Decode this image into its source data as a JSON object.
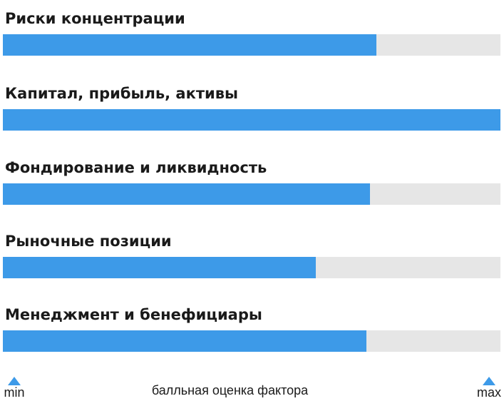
{
  "chart_data": {
    "type": "bar",
    "orientation": "horizontal",
    "categories": [
      "Риски концентрации",
      "Капитал, прибыль, активы",
      "Фондирование и ликвидность",
      "Рыночные позиции",
      "Менеджмент и бенефициары"
    ],
    "values": [
      0.75,
      1.0,
      0.738,
      0.629,
      0.731
    ],
    "xlim": [
      0,
      1
    ],
    "xlabel": "балльная оценка фактора",
    "axis_min_label": "min",
    "axis_max_label": "max",
    "colors": {
      "fill": "#3d9ae8",
      "track": "#e6e6e6"
    }
  }
}
